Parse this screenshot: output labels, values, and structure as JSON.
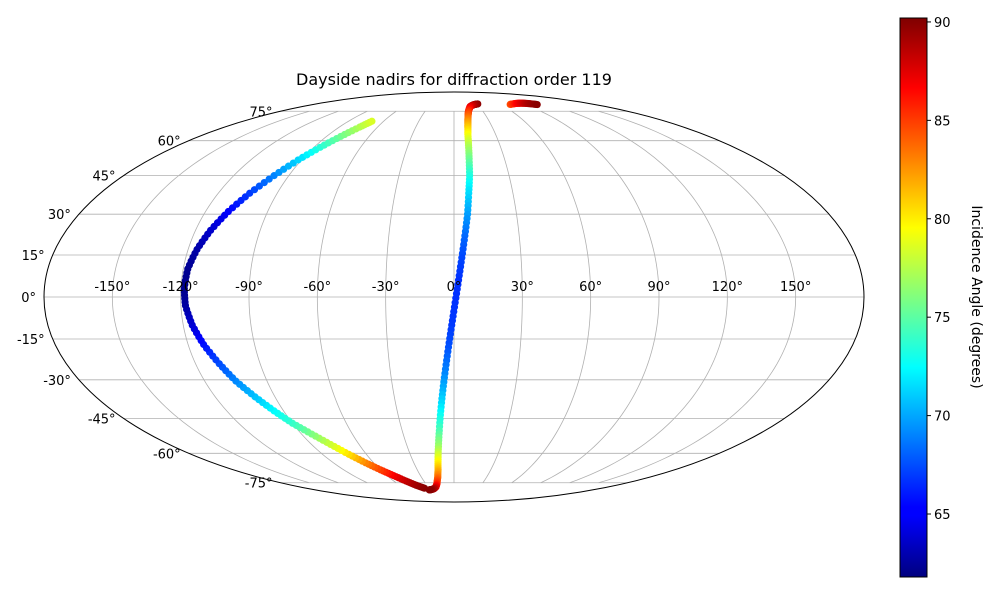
{
  "chart_data": {
    "type": "scatter",
    "projection": "mollweide",
    "title": "Dayside nadirs for diffraction order 119",
    "x_ticks": [
      "-150°",
      "-120°",
      "-90°",
      "-60°",
      "-30°",
      "0°",
      "30°",
      "60°",
      "90°",
      "120°",
      "150°"
    ],
    "y_ticks": [
      "75°",
      "60°",
      "45°",
      "30°",
      "15°",
      "0°",
      "-15°",
      "-30°",
      "-45°",
      "-60°",
      "-75°"
    ],
    "grid": true,
    "colorbar": {
      "label": "Incidence Angle (degrees)",
      "range": [
        61.8,
        90.2
      ],
      "ticks": [
        "65",
        "70",
        "75",
        "80",
        "85",
        "90"
      ],
      "colormap": "jet"
    },
    "series": [
      {
        "points": [
          {
            "lon": 31,
            "lat": 79.5,
            "value": 89.8
          },
          {
            "lon": 28,
            "lat": 79.3,
            "value": 89.5
          },
          {
            "lon": 25,
            "lat": 79,
            "value": 89
          },
          {
            "lon": 22,
            "lat": 78.5,
            "value": 88.3
          },
          {
            "lon": 19,
            "lat": 77.8,
            "value": 87.5
          },
          {
            "lon": 17,
            "lat": 76.5,
            "value": 86.5
          },
          {
            "lon": 15,
            "lat": 75,
            "value": 85.5
          },
          {
            "lon": 13.5,
            "lat": 73,
            "value": 84.3
          },
          {
            "lon": 12,
            "lat": 70,
            "value": 82.8
          },
          {
            "lon": 11,
            "lat": 67,
            "value": 81.3
          },
          {
            "lon": 10,
            "lat": 63,
            "value": 79.5
          },
          {
            "lon": 9.5,
            "lat": 58,
            "value": 77.5
          },
          {
            "lon": 9,
            "lat": 52,
            "value": 75.5
          },
          {
            "lon": 8.5,
            "lat": 45,
            "value": 73.3
          },
          {
            "lon": 7.5,
            "lat": 38,
            "value": 71.5
          },
          {
            "lon": 6.5,
            "lat": 30,
            "value": 69.8
          },
          {
            "lon": 5,
            "lat": 22,
            "value": 68.3
          },
          {
            "lon": 3.5,
            "lat": 14,
            "value": 67.3
          },
          {
            "lon": 2,
            "lat": 6,
            "value": 66.7
          },
          {
            "lon": 0.5,
            "lat": -2,
            "value": 66.7
          },
          {
            "lon": -1,
            "lat": -10,
            "value": 66.9
          },
          {
            "lon": -2.5,
            "lat": -18,
            "value": 67.6
          },
          {
            "lon": -4,
            "lat": -26,
            "value": 68.8
          },
          {
            "lon": -5.5,
            "lat": -34,
            "value": 70.4
          },
          {
            "lon": -7,
            "lat": -42,
            "value": 72.3
          },
          {
            "lon": -8.5,
            "lat": -50,
            "value": 74.5
          },
          {
            "lon": -10,
            "lat": -57,
            "value": 76.8
          },
          {
            "lon": -11.5,
            "lat": -63,
            "value": 79.2
          },
          {
            "lon": -13,
            "lat": -68,
            "value": 81.5
          },
          {
            "lon": -15,
            "lat": -72,
            "value": 83.5
          },
          {
            "lon": -18,
            "lat": -75.5,
            "value": 85.5
          },
          {
            "lon": -21,
            "lat": -77.5,
            "value": 87.3
          },
          {
            "lon": -25,
            "lat": -78.7,
            "value": 88.7
          },
          {
            "lon": -29,
            "lat": -79.2,
            "value": 89.6
          },
          {
            "lon": -32,
            "lat": -79.4,
            "value": 90
          }
        ]
      },
      {
        "points": [
          {
            "lon": -36,
            "lat": -78.3,
            "value": 90
          },
          {
            "lon": -42,
            "lat": -76.5,
            "value": 89.5
          },
          {
            "lon": -48,
            "lat": -74,
            "value": 88.5
          },
          {
            "lon": -54,
            "lat": -71,
            "value": 87
          },
          {
            "lon": -60,
            "lat": -68,
            "value": 85
          },
          {
            "lon": -66,
            "lat": -64.5,
            "value": 83
          },
          {
            "lon": -72,
            "lat": -60.5,
            "value": 80.5
          },
          {
            "lon": -78,
            "lat": -56,
            "value": 78.2
          },
          {
            "lon": -84,
            "lat": -51.5,
            "value": 76
          },
          {
            "lon": -90,
            "lat": -47,
            "value": 74
          },
          {
            "lon": -95,
            "lat": -42,
            "value": 72.5
          },
          {
            "lon": -100,
            "lat": -36.5,
            "value": 70.8
          },
          {
            "lon": -105,
            "lat": -30.5,
            "value": 69.2
          },
          {
            "lon": -109,
            "lat": -24,
            "value": 67.5
          },
          {
            "lon": -113,
            "lat": -17,
            "value": 65.8
          },
          {
            "lon": -116,
            "lat": -10,
            "value": 64.2
          },
          {
            "lon": -118,
            "lat": -3,
            "value": 62.8
          },
          {
            "lon": -118.5,
            "lat": 3,
            "value": 62.2
          },
          {
            "lon": -118,
            "lat": 10,
            "value": 62.3
          },
          {
            "lon": -116,
            "lat": 17,
            "value": 62.9
          },
          {
            "lon": -113,
            "lat": 24,
            "value": 63.9
          },
          {
            "lon": -109,
            "lat": 31,
            "value": 65.3
          },
          {
            "lon": -104,
            "lat": 38,
            "value": 67
          },
          {
            "lon": -98,
            "lat": 45,
            "value": 69
          },
          {
            "lon": -92,
            "lat": 51.5,
            "value": 71.3
          },
          {
            "lon": -86,
            "lat": 57,
            "value": 73.5
          },
          {
            "lon": -80,
            "lat": 62,
            "value": 75.5
          },
          {
            "lon": -74,
            "lat": 66.5,
            "value": 77.3
          },
          {
            "lon": -70,
            "lat": 69.5,
            "value": 78.5
          }
        ]
      },
      {
        "points": [
          {
            "lon": 72,
            "lat": 79.2,
            "value": 84.5
          },
          {
            "lon": 78,
            "lat": 79.6,
            "value": 85.5
          },
          {
            "lon": 84,
            "lat": 79.9,
            "value": 86.5
          },
          {
            "lon": 90,
            "lat": 80,
            "value": 87.5
          },
          {
            "lon": 96,
            "lat": 79.9,
            "value": 88.5
          },
          {
            "lon": 101,
            "lat": 79.6,
            "value": 89.3
          },
          {
            "lon": 106,
            "lat": 79.1,
            "value": 89.9
          }
        ]
      }
    ]
  }
}
